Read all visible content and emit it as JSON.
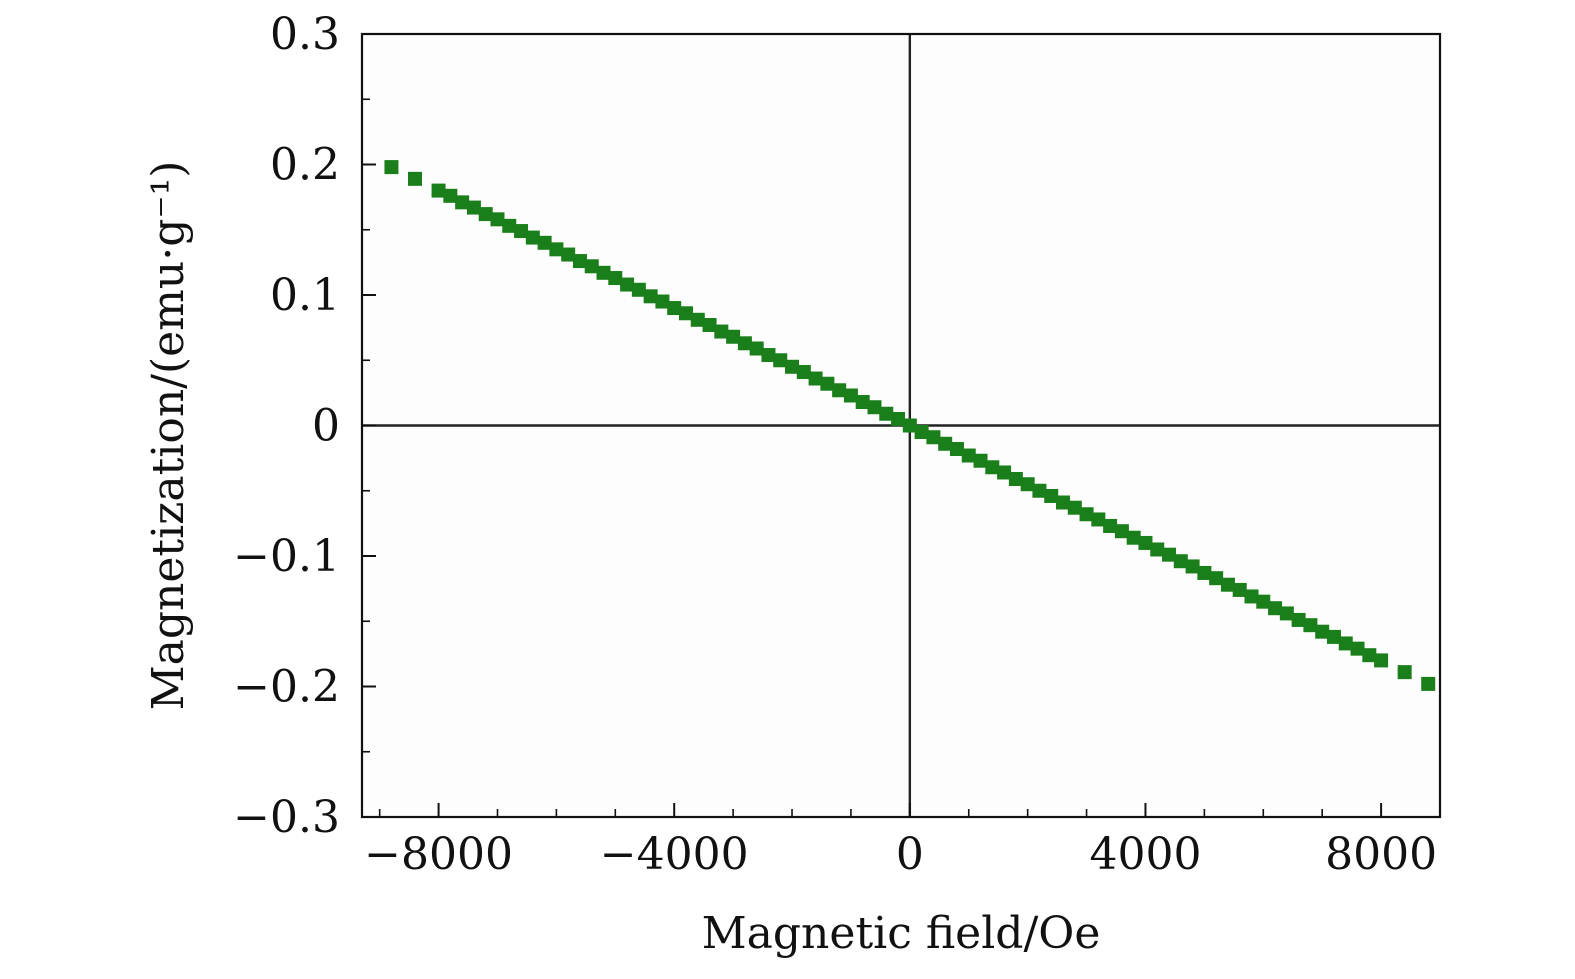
{
  "chart_data": {
    "type": "scatter",
    "title": "",
    "xlabel": "Magnetic field/Oe",
    "ylabel": "Magnetization/(emu·g⁻¹)",
    "xlim": [
      -9300,
      9000
    ],
    "ylim": [
      -0.3,
      0.3
    ],
    "x_ticks": [
      -8000,
      -4000,
      0,
      4000,
      8000
    ],
    "x_tick_labels": [
      "−8000",
      "−4000",
      "0",
      "4000",
      "8000"
    ],
    "y_ticks": [
      0.3,
      0.2,
      0.1,
      0,
      -0.1,
      -0.2,
      -0.3
    ],
    "y_tick_labels": [
      "0.3",
      "0.2",
      "0.1",
      "0",
      "−0.1",
      "−0.2",
      "−0.3"
    ],
    "x_minor_step": 1000,
    "y_minor_step": 0.05,
    "grid": false,
    "zero_lines": true,
    "marker": "square",
    "marker_color": "#1a7f1a",
    "series": [
      {
        "x": [
          -8800,
          -8400,
          -8000,
          -7800,
          -7600,
          -7400,
          -7200,
          -7000,
          -6800,
          -6600,
          -6400,
          -6200,
          -6000,
          -5800,
          -5600,
          -5400,
          -5200,
          -5000,
          -4800,
          -4600,
          -4400,
          -4200,
          -4000,
          -3800,
          -3600,
          -3400,
          -3200,
          -3000,
          -2800,
          -2600,
          -2400,
          -2200,
          -2000,
          -1800,
          -1600,
          -1400,
          -1200,
          -1000,
          -800,
          -600,
          -400,
          -200,
          0,
          200,
          400,
          600,
          800,
          1000,
          1200,
          1400,
          1600,
          1800,
          2000,
          2200,
          2400,
          2600,
          2800,
          3000,
          3200,
          3400,
          3600,
          3800,
          4000,
          4200,
          4400,
          4600,
          4800,
          5000,
          5200,
          5400,
          5600,
          5800,
          6000,
          6200,
          6400,
          6600,
          6800,
          7000,
          7200,
          7400,
          7600,
          7800,
          8000,
          8400,
          8800
        ],
        "y": [
          0.198,
          0.189,
          0.18,
          0.176,
          0.171,
          0.167,
          0.162,
          0.158,
          0.153,
          0.149,
          0.144,
          0.14,
          0.135,
          0.131,
          0.126,
          0.122,
          0.117,
          0.113,
          0.108,
          0.104,
          0.099,
          0.095,
          0.09,
          0.086,
          0.081,
          0.077,
          0.072,
          0.068,
          0.063,
          0.059,
          0.054,
          0.05,
          0.045,
          0.041,
          0.036,
          0.032,
          0.027,
          0.023,
          0.018,
          0.014,
          0.009,
          0.005,
          0.0,
          -0.005,
          -0.009,
          -0.014,
          -0.018,
          -0.023,
          -0.027,
          -0.032,
          -0.036,
          -0.041,
          -0.045,
          -0.05,
          -0.054,
          -0.059,
          -0.063,
          -0.068,
          -0.072,
          -0.077,
          -0.081,
          -0.086,
          -0.09,
          -0.095,
          -0.099,
          -0.104,
          -0.108,
          -0.113,
          -0.117,
          -0.122,
          -0.126,
          -0.131,
          -0.135,
          -0.14,
          -0.144,
          -0.149,
          -0.153,
          -0.158,
          -0.162,
          -0.167,
          -0.171,
          -0.176,
          -0.18,
          -0.189,
          -0.198
        ]
      }
    ]
  }
}
